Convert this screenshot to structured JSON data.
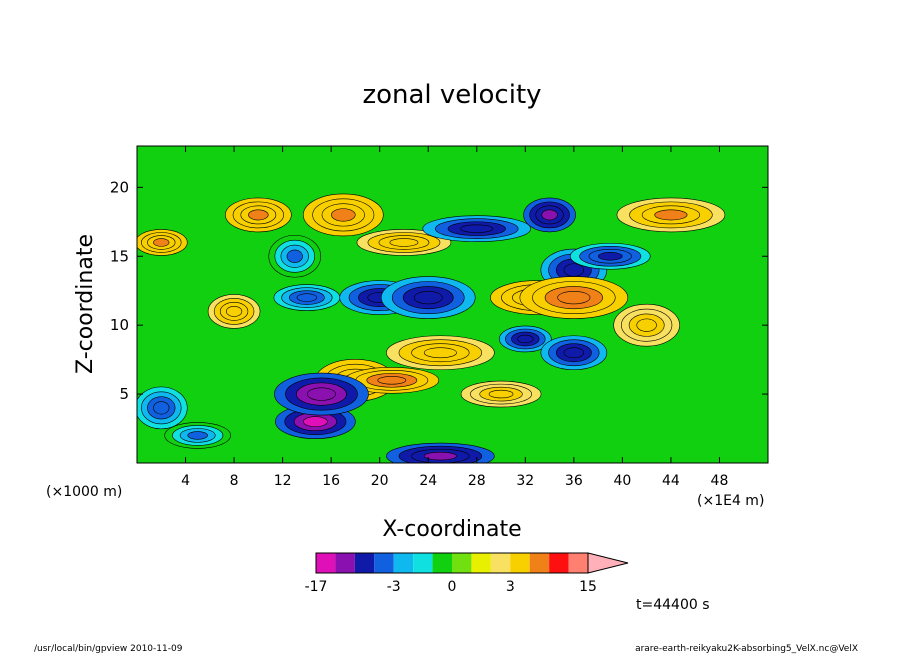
{
  "chart_data": {
    "type": "heatmap",
    "title": "zonal velocity",
    "xlabel": "X-coordinate",
    "ylabel": "Z-coordinate",
    "x_unit_label": "(×1E4 m)",
    "y_unit_label": "(×1000 m)",
    "x_range": [
      0,
      52
    ],
    "y_range": [
      0,
      23
    ],
    "x_ticks": [
      4,
      8,
      12,
      16,
      20,
      24,
      28,
      32,
      36,
      40,
      44,
      48
    ],
    "y_ticks": [
      5,
      10,
      15,
      20
    ],
    "colorbar": {
      "levels": [
        -17,
        -14,
        -10,
        -6,
        -3,
        -2,
        -1,
        0,
        1,
        2,
        3,
        6,
        9,
        12,
        15
      ],
      "tick_values": [
        -17,
        -3,
        0,
        3,
        15
      ],
      "tick_labels": [
        "-17",
        "-3",
        "0",
        "3",
        "15"
      ],
      "colors": [
        "#e010b8",
        "#8a10b0",
        "#101aa8",
        "#1060e0",
        "#10b8f0",
        "#10e0e0",
        "#10d010",
        "#70e010",
        "#e8f000",
        "#f8e060",
        "#f8d000",
        "#f08018",
        "#ff1010",
        "#ff8070",
        "#ffb0b8"
      ]
    },
    "annotation_time": "t=44400 s",
    "features": [
      {
        "x": 2,
        "z": 16,
        "value": 7
      },
      {
        "x": 10,
        "z": 18,
        "value": 7
      },
      {
        "x": 17,
        "z": 18,
        "value": 7
      },
      {
        "x": 22,
        "z": 16,
        "value": 5
      },
      {
        "x": 44,
        "z": 18,
        "value": 6
      },
      {
        "x": 13,
        "z": 15,
        "value": -4
      },
      {
        "x": 14,
        "z": 12,
        "value": -6
      },
      {
        "x": 20,
        "z": 12,
        "value": -10
      },
      {
        "x": 24,
        "z": 12,
        "value": -10
      },
      {
        "x": 28,
        "z": 17,
        "value": -8
      },
      {
        "x": 34,
        "z": 18,
        "value": -12
      },
      {
        "x": 36,
        "z": 14,
        "value": -10
      },
      {
        "x": 39,
        "z": 15,
        "value": -7
      },
      {
        "x": 33,
        "z": 12,
        "value": 7
      },
      {
        "x": 36,
        "z": 12,
        "value": 8
      },
      {
        "x": 32,
        "z": 9,
        "value": -8
      },
      {
        "x": 36,
        "z": 8,
        "value": -10
      },
      {
        "x": 18,
        "z": 6,
        "value": 7
      },
      {
        "x": 21,
        "z": 6,
        "value": 8
      },
      {
        "x": 25,
        "z": 8,
        "value": 5
      },
      {
        "x": 2,
        "z": 4,
        "value": -5
      },
      {
        "x": 5,
        "z": 2,
        "value": -4
      },
      {
        "x": 14.7,
        "z": 3,
        "value": -16
      },
      {
        "x": 15.2,
        "z": 5,
        "value": -14
      },
      {
        "x": 25,
        "z": 0.5,
        "value": -12
      },
      {
        "x": 8,
        "z": 11,
        "value": 5
      },
      {
        "x": 42,
        "z": 10,
        "value": 4
      },
      {
        "x": 30,
        "z": 5,
        "value": 4
      }
    ]
  },
  "footer": {
    "left": "/usr/local/bin/gpview  2010-11-09",
    "right": "arare-earth-reikyaku2K-absorbing5_VelX.nc@VelX"
  }
}
